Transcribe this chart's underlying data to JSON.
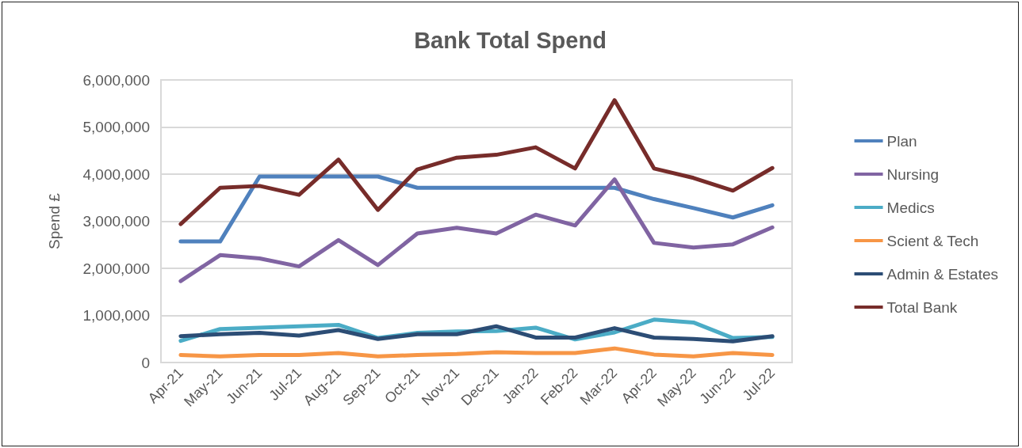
{
  "chart_data": {
    "type": "line",
    "title": "Bank Total Spend",
    "ylabel": "Spend £",
    "categories": [
      "Apr-21",
      "May-21",
      "Jun-21",
      "Jul-21",
      "Aug-21",
      "Sep-21",
      "Oct-21",
      "Nov-21",
      "Dec-21",
      "Jan-22",
      "Feb-22",
      "Mar-22",
      "Apr-22",
      "May-22",
      "Jun-22",
      "Jul-22"
    ],
    "series": [
      {
        "name": "Plan",
        "color": "#4f81bd",
        "values": [
          2570000,
          2570000,
          3950000,
          3950000,
          3950000,
          3950000,
          3710000,
          3710000,
          3710000,
          3710000,
          3710000,
          3710000,
          3470000,
          3280000,
          3080000,
          3340000
        ]
      },
      {
        "name": "Nursing",
        "color": "#8064a2",
        "values": [
          1730000,
          2280000,
          2210000,
          2040000,
          2600000,
          2070000,
          2740000,
          2860000,
          2740000,
          3140000,
          2910000,
          3890000,
          2540000,
          2440000,
          2510000,
          2870000
        ]
      },
      {
        "name": "Medics",
        "color": "#4bacc6",
        "values": [
          460000,
          710000,
          740000,
          770000,
          800000,
          520000,
          630000,
          660000,
          670000,
          740000,
          490000,
          640000,
          910000,
          850000,
          520000,
          540000
        ]
      },
      {
        "name": "Scient & Tech",
        "color": "#f79646",
        "values": [
          160000,
          130000,
          160000,
          160000,
          200000,
          130000,
          160000,
          180000,
          220000,
          200000,
          200000,
          300000,
          170000,
          130000,
          200000,
          160000
        ]
      },
      {
        "name": "Admin & Estates",
        "color": "#2c4d75",
        "values": [
          560000,
          600000,
          630000,
          570000,
          690000,
          500000,
          600000,
          600000,
          770000,
          530000,
          530000,
          730000,
          530000,
          500000,
          450000,
          560000
        ]
      },
      {
        "name": "Total Bank",
        "color": "#772c2a",
        "values": [
          2940000,
          3710000,
          3750000,
          3560000,
          4310000,
          3240000,
          4100000,
          4350000,
          4410000,
          4570000,
          4120000,
          5570000,
          4120000,
          3920000,
          3650000,
          4130000
        ]
      }
    ],
    "ylim": [
      0,
      6000000
    ],
    "yticks": [
      {
        "value": 0,
        "label": "0"
      },
      {
        "value": 1000000,
        "label": "1,000,000"
      },
      {
        "value": 2000000,
        "label": "2,000,000"
      },
      {
        "value": 3000000,
        "label": "3,000,000"
      },
      {
        "value": 4000000,
        "label": "4,000,000"
      },
      {
        "value": 5000000,
        "label": "5,000,000"
      },
      {
        "value": 6000000,
        "label": "6,000,000"
      }
    ],
    "grid": "y",
    "legend": "right",
    "marker": "none",
    "line_style": "solid"
  }
}
